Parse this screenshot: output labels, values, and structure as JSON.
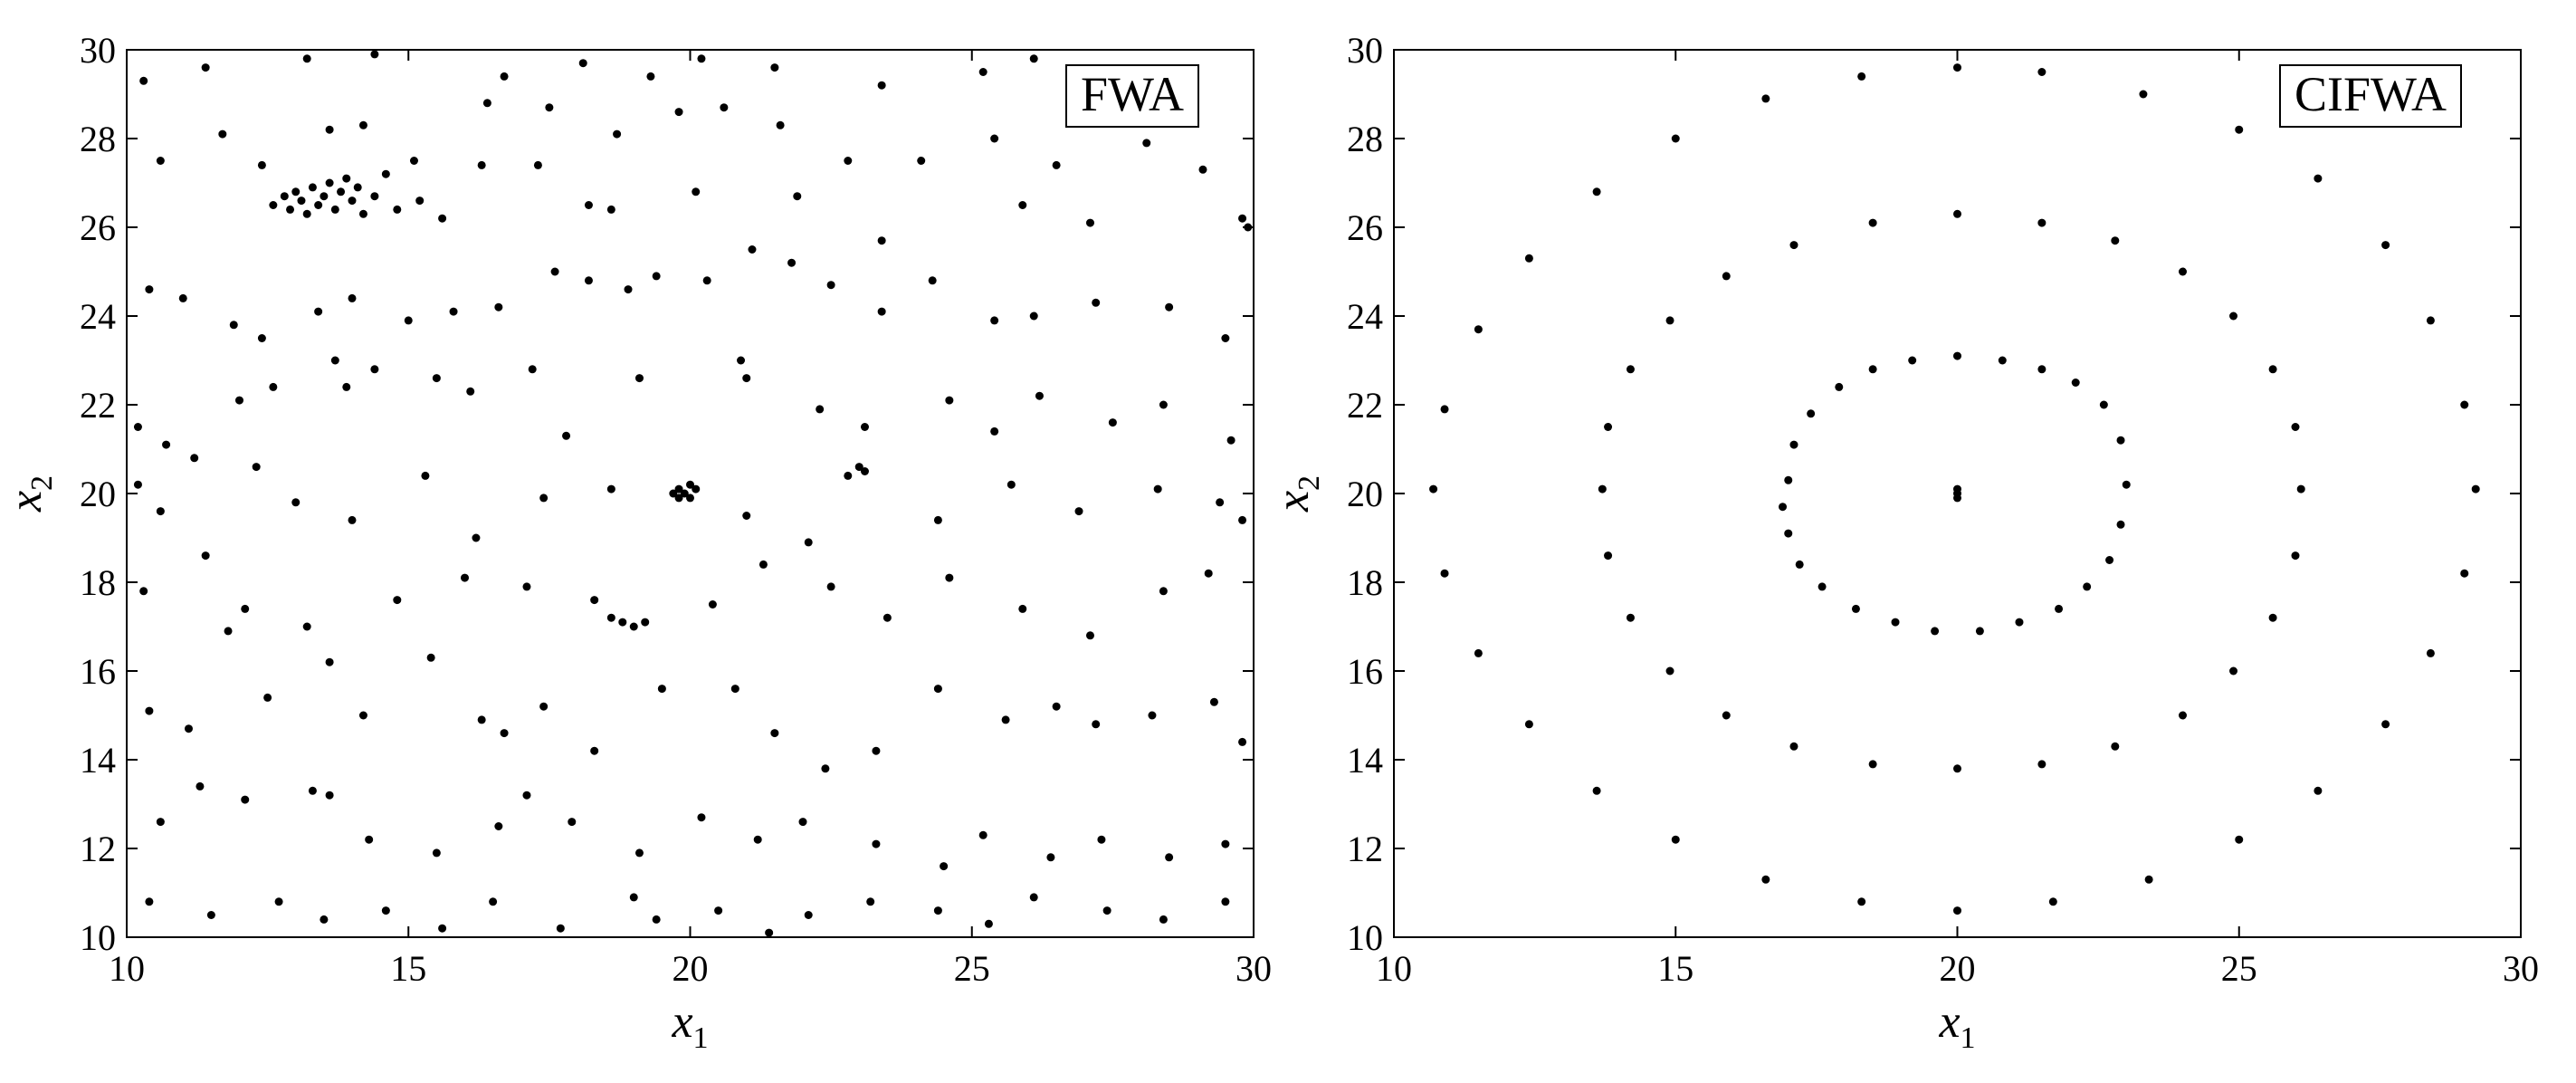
{
  "chart_data": [
    {
      "type": "scatter",
      "title": "",
      "legend_label": "FWA",
      "legend_position": "top-right",
      "xlabel_main": "x",
      "xlabel_sub": "1",
      "ylabel_main": "x",
      "ylabel_sub": "2",
      "xlim": [
        10,
        30
      ],
      "ylim": [
        10,
        30
      ],
      "xticks": [
        10,
        15,
        20,
        25,
        30
      ],
      "yticks": [
        10,
        12,
        14,
        16,
        18,
        20,
        22,
        24,
        26,
        28,
        30
      ],
      "grid": false,
      "marker_color": "#000000",
      "points": [
        [
          10.3,
          29.3
        ],
        [
          11.4,
          29.6
        ],
        [
          13.2,
          29.8
        ],
        [
          14.4,
          29.9
        ],
        [
          16.7,
          29.4
        ],
        [
          18.1,
          29.7
        ],
        [
          19.3,
          29.4
        ],
        [
          20.2,
          29.8
        ],
        [
          21.5,
          29.6
        ],
        [
          23.4,
          29.2
        ],
        [
          25.2,
          29.5
        ],
        [
          26.1,
          29.8
        ],
        [
          27.2,
          29.3
        ],
        [
          10.6,
          27.5
        ],
        [
          11.7,
          28.1
        ],
        [
          12.4,
          27.4
        ],
        [
          13.6,
          28.2
        ],
        [
          14.2,
          28.3
        ],
        [
          15.1,
          27.5
        ],
        [
          16.4,
          28.8
        ],
        [
          17.5,
          28.7
        ],
        [
          18.7,
          28.1
        ],
        [
          19.8,
          28.6
        ],
        [
          20.6,
          28.7
        ],
        [
          21.6,
          28.3
        ],
        [
          22.8,
          27.5
        ],
        [
          24.1,
          27.5
        ],
        [
          25.4,
          28.0
        ],
        [
          26.5,
          27.4
        ],
        [
          28.1,
          27.9
        ],
        [
          29.1,
          27.3
        ],
        [
          12.6,
          26.5
        ],
        [
          12.8,
          26.7
        ],
        [
          12.9,
          26.4
        ],
        [
          13.0,
          26.8
        ],
        [
          13.1,
          26.6
        ],
        [
          13.2,
          26.3
        ],
        [
          13.3,
          26.9
        ],
        [
          13.4,
          26.5
        ],
        [
          13.5,
          26.7
        ],
        [
          13.6,
          27.0
        ],
        [
          13.7,
          26.4
        ],
        [
          13.8,
          26.8
        ],
        [
          13.9,
          27.1
        ],
        [
          14.0,
          26.6
        ],
        [
          14.1,
          26.9
        ],
        [
          14.2,
          26.3
        ],
        [
          14.4,
          26.7
        ],
        [
          14.6,
          27.2
        ],
        [
          14.8,
          26.4
        ],
        [
          15.2,
          26.6
        ],
        [
          15.6,
          26.2
        ],
        [
          16.3,
          27.4
        ],
        [
          17.3,
          27.4
        ],
        [
          18.2,
          26.5
        ],
        [
          18.6,
          26.4
        ],
        [
          20.1,
          26.8
        ],
        [
          21.9,
          26.7
        ],
        [
          23.4,
          25.7
        ],
        [
          25.9,
          26.5
        ],
        [
          27.1,
          26.1
        ],
        [
          29.8,
          26.2
        ],
        [
          29.9,
          26.0
        ],
        [
          10.4,
          24.6
        ],
        [
          11.0,
          24.4
        ],
        [
          11.9,
          23.8
        ],
        [
          12.4,
          23.5
        ],
        [
          13.4,
          24.1
        ],
        [
          14.0,
          24.4
        ],
        [
          15.0,
          23.9
        ],
        [
          15.8,
          24.1
        ],
        [
          16.6,
          24.2
        ],
        [
          17.6,
          25.0
        ],
        [
          18.2,
          24.8
        ],
        [
          18.9,
          24.6
        ],
        [
          19.4,
          24.9
        ],
        [
          20.3,
          24.8
        ],
        [
          21.1,
          25.5
        ],
        [
          21.8,
          25.2
        ],
        [
          22.5,
          24.7
        ],
        [
          23.4,
          24.1
        ],
        [
          24.3,
          24.8
        ],
        [
          25.4,
          23.9
        ],
        [
          26.1,
          24.0
        ],
        [
          27.2,
          24.3
        ],
        [
          28.5,
          24.2
        ],
        [
          29.5,
          23.5
        ],
        [
          10.2,
          21.5
        ],
        [
          10.7,
          21.1
        ],
        [
          11.2,
          20.8
        ],
        [
          12.0,
          22.1
        ],
        [
          12.6,
          22.4
        ],
        [
          13.7,
          23.0
        ],
        [
          13.9,
          22.4
        ],
        [
          14.4,
          22.8
        ],
        [
          15.5,
          22.6
        ],
        [
          16.1,
          22.3
        ],
        [
          17.2,
          22.8
        ],
        [
          17.8,
          21.3
        ],
        [
          19.1,
          22.6
        ],
        [
          20.9,
          23.0
        ],
        [
          21.0,
          22.6
        ],
        [
          22.3,
          21.9
        ],
        [
          23.1,
          21.5
        ],
        [
          24.6,
          22.1
        ],
        [
          25.4,
          21.4
        ],
        [
          26.2,
          22.2
        ],
        [
          27.5,
          21.6
        ],
        [
          28.4,
          22.0
        ],
        [
          29.6,
          21.2
        ],
        [
          10.2,
          20.2
        ],
        [
          10.6,
          19.6
        ],
        [
          12.3,
          20.6
        ],
        [
          13.0,
          19.8
        ],
        [
          14.0,
          19.4
        ],
        [
          15.3,
          20.4
        ],
        [
          16.2,
          19.0
        ],
        [
          17.4,
          19.9
        ],
        [
          18.6,
          20.1
        ],
        [
          19.7,
          20.0
        ],
        [
          19.8,
          20.1
        ],
        [
          19.9,
          20.0
        ],
        [
          20.0,
          19.9
        ],
        [
          20.1,
          20.1
        ],
        [
          19.8,
          19.9
        ],
        [
          20.0,
          20.2
        ],
        [
          21.0,
          19.5
        ],
        [
          22.1,
          18.9
        ],
        [
          22.8,
          20.4
        ],
        [
          23.0,
          20.6
        ],
        [
          23.1,
          20.5
        ],
        [
          24.4,
          19.4
        ],
        [
          25.7,
          20.2
        ],
        [
          26.9,
          19.6
        ],
        [
          28.3,
          20.1
        ],
        [
          29.4,
          19.8
        ],
        [
          29.8,
          19.4
        ],
        [
          10.3,
          17.8
        ],
        [
          11.4,
          18.6
        ],
        [
          12.1,
          17.4
        ],
        [
          13.2,
          17.0
        ],
        [
          14.8,
          17.6
        ],
        [
          16.0,
          18.1
        ],
        [
          17.1,
          17.9
        ],
        [
          18.3,
          17.6
        ],
        [
          18.6,
          17.2
        ],
        [
          18.8,
          17.1
        ],
        [
          19.0,
          17.0
        ],
        [
          19.2,
          17.1
        ],
        [
          20.4,
          17.5
        ],
        [
          21.3,
          18.4
        ],
        [
          22.5,
          17.9
        ],
        [
          23.5,
          17.2
        ],
        [
          24.6,
          18.1
        ],
        [
          25.9,
          17.4
        ],
        [
          27.1,
          16.8
        ],
        [
          28.4,
          17.8
        ],
        [
          29.2,
          18.2
        ],
        [
          10.4,
          15.1
        ],
        [
          11.1,
          14.7
        ],
        [
          11.8,
          16.9
        ],
        [
          12.5,
          15.4
        ],
        [
          13.6,
          16.2
        ],
        [
          14.2,
          15.0
        ],
        [
          15.4,
          16.3
        ],
        [
          16.3,
          14.9
        ],
        [
          16.7,
          14.6
        ],
        [
          17.4,
          15.2
        ],
        [
          18.3,
          14.2
        ],
        [
          19.5,
          15.6
        ],
        [
          20.8,
          15.6
        ],
        [
          21.5,
          14.6
        ],
        [
          22.4,
          13.8
        ],
        [
          23.3,
          14.2
        ],
        [
          24.4,
          15.6
        ],
        [
          25.6,
          14.9
        ],
        [
          26.5,
          15.2
        ],
        [
          27.2,
          14.8
        ],
        [
          28.2,
          15.0
        ],
        [
          29.3,
          15.3
        ],
        [
          29.8,
          14.4
        ],
        [
          10.6,
          12.6
        ],
        [
          11.3,
          13.4
        ],
        [
          12.1,
          13.1
        ],
        [
          13.3,
          13.3
        ],
        [
          13.6,
          13.2
        ],
        [
          14.3,
          12.2
        ],
        [
          15.5,
          11.9
        ],
        [
          16.6,
          12.5
        ],
        [
          17.1,
          13.2
        ],
        [
          17.9,
          12.6
        ],
        [
          19.1,
          11.9
        ],
        [
          20.2,
          12.7
        ],
        [
          21.2,
          12.2
        ],
        [
          22.0,
          12.6
        ],
        [
          23.3,
          12.1
        ],
        [
          24.5,
          11.6
        ],
        [
          25.2,
          12.3
        ],
        [
          26.4,
          11.8
        ],
        [
          27.3,
          12.2
        ],
        [
          28.5,
          11.8
        ],
        [
          29.5,
          12.1
        ],
        [
          10.4,
          10.8
        ],
        [
          11.5,
          10.5
        ],
        [
          12.7,
          10.8
        ],
        [
          13.5,
          10.4
        ],
        [
          14.6,
          10.6
        ],
        [
          15.6,
          10.2
        ],
        [
          16.5,
          10.8
        ],
        [
          17.7,
          10.2
        ],
        [
          19.0,
          10.9
        ],
        [
          19.4,
          10.4
        ],
        [
          20.5,
          10.6
        ],
        [
          21.4,
          10.1
        ],
        [
          22.1,
          10.5
        ],
        [
          23.2,
          10.8
        ],
        [
          24.4,
          10.6
        ],
        [
          25.3,
          10.3
        ],
        [
          26.1,
          10.9
        ],
        [
          27.4,
          10.6
        ],
        [
          28.4,
          10.4
        ],
        [
          29.5,
          10.8
        ]
      ]
    },
    {
      "type": "scatter",
      "title": "",
      "legend_label": "CIFWA",
      "legend_position": "top-right",
      "xlabel_main": "x",
      "xlabel_sub": "1",
      "ylabel_main": "x",
      "ylabel_sub": "2",
      "xlim": [
        10,
        30
      ],
      "ylim": [
        10,
        30
      ],
      "xticks": [
        10,
        15,
        20,
        25,
        30
      ],
      "yticks": [
        10,
        12,
        14,
        16,
        18,
        20,
        22,
        24,
        26,
        28,
        30
      ],
      "grid": false,
      "marker_color": "#000000",
      "points": [
        [
          20.0,
          20.1
        ],
        [
          20.0,
          20.0
        ],
        [
          20.0,
          19.9
        ],
        [
          23.0,
          20.2
        ],
        [
          22.9,
          21.2
        ],
        [
          22.6,
          22.0
        ],
        [
          22.1,
          22.5
        ],
        [
          21.5,
          22.8
        ],
        [
          20.8,
          23.0
        ],
        [
          20.0,
          23.1
        ],
        [
          19.2,
          23.0
        ],
        [
          18.5,
          22.8
        ],
        [
          17.9,
          22.4
        ],
        [
          17.4,
          21.8
        ],
        [
          17.1,
          21.1
        ],
        [
          17.0,
          20.3
        ],
        [
          16.9,
          19.7
        ],
        [
          17.0,
          19.1
        ],
        [
          17.2,
          18.4
        ],
        [
          17.6,
          17.9
        ],
        [
          18.2,
          17.4
        ],
        [
          18.9,
          17.1
        ],
        [
          19.6,
          16.9
        ],
        [
          20.4,
          16.9
        ],
        [
          21.1,
          17.1
        ],
        [
          21.8,
          17.4
        ],
        [
          22.3,
          17.9
        ],
        [
          22.7,
          18.5
        ],
        [
          22.9,
          19.3
        ],
        [
          26.1,
          20.1
        ],
        [
          26.0,
          21.5
        ],
        [
          25.6,
          22.8
        ],
        [
          24.9,
          24.0
        ],
        [
          24.0,
          25.0
        ],
        [
          22.8,
          25.7
        ],
        [
          21.5,
          26.1
        ],
        [
          20.0,
          26.3
        ],
        [
          18.5,
          26.1
        ],
        [
          17.1,
          25.6
        ],
        [
          15.9,
          24.9
        ],
        [
          14.9,
          23.9
        ],
        [
          14.2,
          22.8
        ],
        [
          13.8,
          21.5
        ],
        [
          13.7,
          20.1
        ],
        [
          13.8,
          18.6
        ],
        [
          14.2,
          17.2
        ],
        [
          14.9,
          16.0
        ],
        [
          15.9,
          15.0
        ],
        [
          17.1,
          14.3
        ],
        [
          18.5,
          13.9
        ],
        [
          20.0,
          13.8
        ],
        [
          21.5,
          13.9
        ],
        [
          22.8,
          14.3
        ],
        [
          24.0,
          15.0
        ],
        [
          24.9,
          16.0
        ],
        [
          25.6,
          17.2
        ],
        [
          26.0,
          18.6
        ],
        [
          29.2,
          20.1
        ],
        [
          29.0,
          22.0
        ],
        [
          28.4,
          23.9
        ],
        [
          27.6,
          25.6
        ],
        [
          26.4,
          27.1
        ],
        [
          25.0,
          28.2
        ],
        [
          23.3,
          29.0
        ],
        [
          21.5,
          29.5
        ],
        [
          20.0,
          29.6
        ],
        [
          18.3,
          29.4
        ],
        [
          16.6,
          28.9
        ],
        [
          15.0,
          28.0
        ],
        [
          13.6,
          26.8
        ],
        [
          12.4,
          25.3
        ],
        [
          11.5,
          23.7
        ],
        [
          10.9,
          21.9
        ],
        [
          10.7,
          20.1
        ],
        [
          10.9,
          18.2
        ],
        [
          11.5,
          16.4
        ],
        [
          12.4,
          14.8
        ],
        [
          13.6,
          13.3
        ],
        [
          15.0,
          12.2
        ],
        [
          16.6,
          11.3
        ],
        [
          18.3,
          10.8
        ],
        [
          20.0,
          10.6
        ],
        [
          21.7,
          10.8
        ],
        [
          23.4,
          11.3
        ],
        [
          25.0,
          12.2
        ],
        [
          26.4,
          13.3
        ],
        [
          27.6,
          14.8
        ],
        [
          28.4,
          16.4
        ],
        [
          29.0,
          18.2
        ]
      ]
    }
  ]
}
